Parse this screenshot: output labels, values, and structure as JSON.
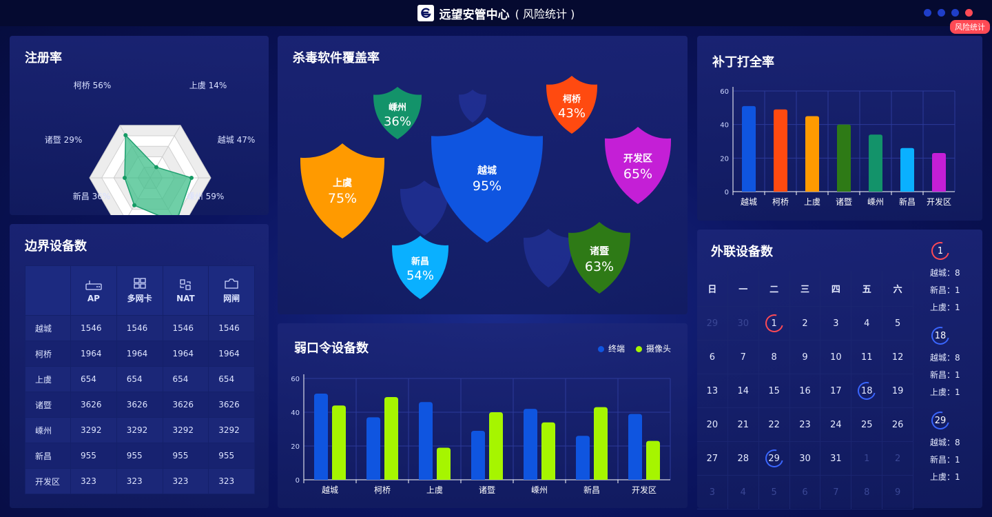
{
  "header": {
    "title": "远望安管中心",
    "subtitle": "( 风险统计 )",
    "page_tag": "风险统计",
    "dots": 4,
    "active_dot": 3
  },
  "radar": {
    "title": "注册率",
    "labels": [
      {
        "name": "柯桥",
        "value": "56%"
      },
      {
        "name": "上虞",
        "value": "14%"
      },
      {
        "name": "越城",
        "value": "47%"
      },
      {
        "name": "嵊州",
        "value": "59%"
      },
      {
        "name": "新昌",
        "value": "36%"
      },
      {
        "name": "诸暨",
        "value": "29%"
      }
    ],
    "label_text": [
      "柯桥 56%",
      "上虞 14%",
      "越城 47%",
      "嵊州 59%",
      "新昌 36%",
      "诸暨 29%"
    ],
    "fill_color": "#3fbf8a"
  },
  "antivirus": {
    "title": "杀毒软件覆盖率",
    "shields": [
      {
        "name": "嵊州",
        "value": "36%",
        "color": "#13936a"
      },
      {
        "name": "柯桥",
        "value": "43%",
        "color": "#ff4a10"
      },
      {
        "name": "上虞",
        "value": "75%",
        "color": "#ff9a00"
      },
      {
        "name": "越城",
        "value": "95%",
        "color": "#0f55e0"
      },
      {
        "name": "开发区",
        "value": "65%",
        "color": "#c41fd6"
      },
      {
        "name": "新昌",
        "value": "54%",
        "color": "#0ab0ff"
      },
      {
        "name": "诸暨",
        "value": "63%",
        "color": "#2e7a16"
      }
    ]
  },
  "patch": {
    "title": "补丁打全率",
    "chart_data": {
      "type": "bar",
      "categories": [
        "越城",
        "柯桥",
        "上虞",
        "诸暨",
        "嵊州",
        "新昌",
        "开发区"
      ],
      "values": [
        51,
        49,
        45,
        40,
        34,
        26,
        23
      ],
      "colors": [
        "#0f55e0",
        "#ff4a10",
        "#ff9a00",
        "#2e7a16",
        "#13936a",
        "#0ab0ff",
        "#c41fd6"
      ],
      "ylim": [
        0,
        60
      ],
      "yticks": [
        "0",
        "20",
        "40",
        "60"
      ]
    }
  },
  "boundary": {
    "title": "边界设备数",
    "headers": [
      "AP",
      "多网卡",
      "NAT",
      "网闸"
    ],
    "rows": [
      {
        "name": "越城",
        "values": [
          "1546",
          "1546",
          "1546",
          "1546"
        ]
      },
      {
        "name": "柯桥",
        "values": [
          "1964",
          "1964",
          "1964",
          "1964"
        ]
      },
      {
        "name": "上虞",
        "values": [
          "654",
          "654",
          "654",
          "654"
        ]
      },
      {
        "name": "诸暨",
        "values": [
          "3626",
          "3626",
          "3626",
          "3626"
        ]
      },
      {
        "name": "嵊州",
        "values": [
          "3292",
          "3292",
          "3292",
          "3292"
        ]
      },
      {
        "name": "新昌",
        "values": [
          "955",
          "955",
          "955",
          "955"
        ]
      },
      {
        "name": "开发区",
        "values": [
          "323",
          "323",
          "323",
          "323"
        ]
      }
    ]
  },
  "weak": {
    "title": "弱口令设备数",
    "legend": [
      {
        "name": "终端",
        "color": "#0f55e0"
      },
      {
        "name": "摄像头",
        "color": "#a6f500"
      }
    ],
    "chart_data": {
      "type": "bar",
      "categories": [
        "越城",
        "柯桥",
        "上虞",
        "诸暨",
        "嵊州",
        "新昌",
        "开发区"
      ],
      "series": [
        {
          "name": "终端",
          "values": [
            51,
            37,
            46,
            29,
            42,
            26,
            39
          ]
        },
        {
          "name": "摄像头",
          "values": [
            44,
            49,
            19,
            40,
            34,
            43,
            23
          ]
        }
      ],
      "ylim": [
        0,
        60
      ],
      "yticks": [
        "0",
        "20",
        "40",
        "60"
      ]
    }
  },
  "external": {
    "title": "外联设备数",
    "weekdays": [
      "日",
      "一",
      "二",
      "三",
      "四",
      "五",
      "六"
    ],
    "weeks": [
      [
        {
          "d": "29",
          "dim": true
        },
        {
          "d": "30",
          "dim": true
        },
        {
          "d": "1",
          "mark": "red"
        },
        {
          "d": "2"
        },
        {
          "d": "3"
        },
        {
          "d": "4"
        },
        {
          "d": "5"
        }
      ],
      [
        {
          "d": "6"
        },
        {
          "d": "7"
        },
        {
          "d": "8"
        },
        {
          "d": "9"
        },
        {
          "d": "10"
        },
        {
          "d": "11"
        },
        {
          "d": "12"
        }
      ],
      [
        {
          "d": "13"
        },
        {
          "d": "14"
        },
        {
          "d": "15"
        },
        {
          "d": "16"
        },
        {
          "d": "17"
        },
        {
          "d": "18",
          "mark": "blue"
        },
        {
          "d": "19"
        }
      ],
      [
        {
          "d": "20"
        },
        {
          "d": "21"
        },
        {
          "d": "22"
        },
        {
          "d": "23"
        },
        {
          "d": "24"
        },
        {
          "d": "25"
        },
        {
          "d": "26"
        }
      ],
      [
        {
          "d": "27"
        },
        {
          "d": "28"
        },
        {
          "d": "29",
          "mark": "blue"
        },
        {
          "d": "30"
        },
        {
          "d": "31"
        },
        {
          "d": "1",
          "dim": true
        },
        {
          "d": "2",
          "dim": true
        }
      ],
      [
        {
          "d": "3",
          "dim": true
        },
        {
          "d": "4",
          "dim": true
        },
        {
          "d": "5",
          "dim": true
        },
        {
          "d": "6",
          "dim": true
        },
        {
          "d": "7",
          "dim": true
        },
        {
          "d": "8",
          "dim": true
        },
        {
          "d": "9",
          "dim": true
        }
      ]
    ],
    "details": [
      {
        "day": "1",
        "mark": "red",
        "lines": [
          "越城：8",
          "新昌：1",
          "上虞：1"
        ]
      },
      {
        "day": "18",
        "mark": "blue",
        "lines": [
          "越城：8",
          "新昌：1",
          "上虞：1"
        ]
      },
      {
        "day": "29",
        "mark": "blue",
        "lines": [
          "越城：8",
          "新昌：1",
          "上虞：1"
        ]
      }
    ]
  }
}
